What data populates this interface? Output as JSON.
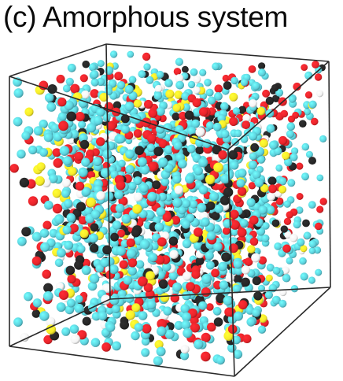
{
  "figure": {
    "caption": "(c) Amorphous system",
    "atom_colors": {
      "cyan": "#5cd0dc",
      "red": "#e8242a",
      "black": "#262626",
      "yellow": "#f6ea2a",
      "white": "#f4f4f4"
    },
    "box_edge_color": "#2a2a2a"
  }
}
